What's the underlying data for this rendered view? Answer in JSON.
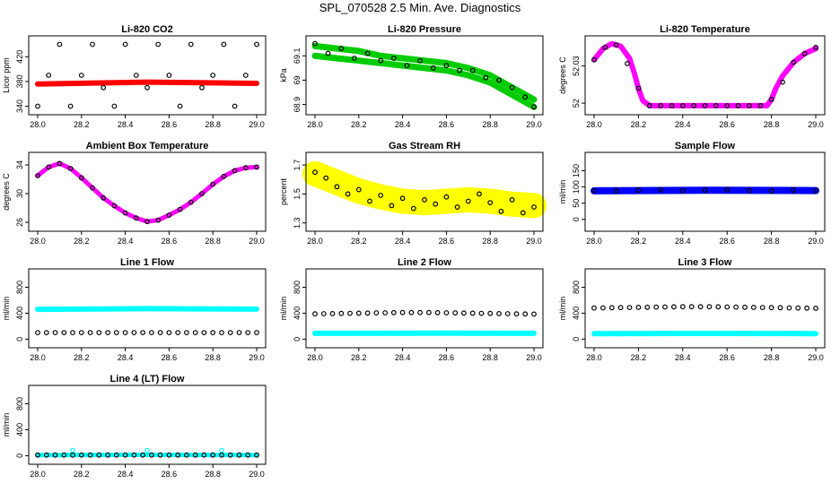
{
  "title": "SPL_070528  2.5 Min. Ave. Diagnostics",
  "colors": {
    "black": "#000000",
    "red": "#ff0000",
    "green": "#00cc00",
    "magenta": "#ff00ff",
    "yellow": "#ffff00",
    "blue": "#0000ff",
    "cyan": "#00ffff"
  },
  "chart_data": [
    {
      "type": "scatter",
      "title": "Li-820 CO2",
      "ylabel": "Licor ppm",
      "xlim": [
        28.0,
        29.0
      ],
      "ylim": [
        335,
        445
      ],
      "xticks": [
        28.0,
        28.2,
        28.4,
        28.6,
        28.8,
        29.0
      ],
      "yticks": [
        340,
        380,
        420
      ],
      "series": [
        {
          "color": "red",
          "shape": "band",
          "x": [
            28.0,
            28.5,
            29.0
          ],
          "y": [
            376,
            379,
            377
          ],
          "width": 6
        },
        {
          "color": "black",
          "shape": "ring",
          "x": [
            28.0,
            28.05,
            28.1,
            28.15,
            28.2,
            28.25,
            28.3,
            28.35,
            28.4,
            28.45,
            28.5,
            28.55,
            28.6,
            28.65,
            28.7,
            28.75,
            28.8,
            28.85,
            28.9,
            28.95,
            29.0
          ],
          "y": [
            340,
            390,
            440,
            340,
            390,
            440,
            370,
            340,
            440,
            390,
            370,
            440,
            390,
            340,
            440,
            370,
            390,
            440,
            340,
            390,
            440
          ]
        }
      ]
    },
    {
      "type": "scatter",
      "title": "Li-820 Pressure",
      "ylabel": "kPa",
      "xlim": [
        28.0,
        29.0
      ],
      "ylim": [
        68.88,
        69.16
      ],
      "xticks": [
        28.0,
        28.2,
        28.4,
        28.6,
        28.8,
        29.0
      ],
      "yticks": [
        68.9,
        69.0,
        69.1
      ],
      "series": [
        {
          "color": "green",
          "shape": "band",
          "x": [
            28.0,
            28.1,
            28.2,
            28.3,
            28.4,
            28.5,
            28.6,
            28.7,
            28.8,
            28.9,
            29.0
          ],
          "y": [
            69.14,
            69.13,
            69.12,
            69.1,
            69.09,
            69.08,
            69.07,
            69.05,
            69.02,
            68.97,
            68.92
          ],
          "width": 7
        },
        {
          "color": "green",
          "shape": "band",
          "x": [
            28.0,
            28.1,
            28.2,
            28.3,
            28.4,
            28.5,
            28.6,
            28.7,
            28.8,
            28.9,
            29.0
          ],
          "y": [
            69.1,
            69.09,
            69.08,
            69.07,
            69.06,
            69.05,
            69.04,
            69.02,
            68.99,
            68.94,
            68.89
          ],
          "width": 7
        },
        {
          "color": "black",
          "shape": "ring",
          "x": [
            28.0,
            28.06,
            28.12,
            28.18,
            28.24,
            28.3,
            28.36,
            28.42,
            28.48,
            28.54,
            28.6,
            28.66,
            28.72,
            28.78,
            28.84,
            28.9,
            28.96,
            29.0
          ],
          "y": [
            69.15,
            69.11,
            69.13,
            69.09,
            69.11,
            69.08,
            69.09,
            69.06,
            69.08,
            69.05,
            69.06,
            69.04,
            69.04,
            69.01,
            69.0,
            68.97,
            68.93,
            68.89
          ]
        }
      ]
    },
    {
      "type": "scatter",
      "title": "Li-820 Temperature",
      "ylabel": "degrees C",
      "xlim": [
        28.0,
        29.0
      ],
      "ylim": [
        51.995,
        52.05
      ],
      "xticks": [
        28.0,
        28.2,
        28.4,
        28.6,
        28.8,
        29.0
      ],
      "yticks": [
        52.0,
        52.03
      ],
      "series": [
        {
          "color": "magenta",
          "shape": "band",
          "x": [
            28.0,
            28.04,
            28.08,
            28.12,
            28.16,
            28.18,
            28.2,
            28.22,
            28.25,
            28.3,
            28.5,
            28.7,
            28.78,
            28.8,
            28.82,
            28.85,
            28.9,
            28.95,
            29.0
          ],
          "y": [
            52.035,
            52.044,
            52.048,
            52.046,
            52.036,
            52.025,
            52.012,
            52.002,
            51.998,
            51.998,
            51.998,
            51.998,
            51.998,
            52.003,
            52.012,
            52.022,
            52.033,
            52.04,
            52.044
          ],
          "width": 6
        },
        {
          "color": "black",
          "shape": "ring",
          "x": [
            28.0,
            28.05,
            28.1,
            28.15,
            28.2,
            28.25,
            28.3,
            28.35,
            28.4,
            28.45,
            28.5,
            28.55,
            28.6,
            28.65,
            28.7,
            28.75,
            28.8,
            28.85,
            28.9,
            28.95,
            29.0
          ],
          "y": [
            52.035,
            52.045,
            52.047,
            52.032,
            52.012,
            51.998,
            51.998,
            51.998,
            51.998,
            51.998,
            51.998,
            51.998,
            51.998,
            51.998,
            51.998,
            51.998,
            52.003,
            52.017,
            52.033,
            52.04,
            52.045
          ]
        }
      ]
    },
    {
      "type": "scatter",
      "title": "Ambient Box Temperature",
      "ylabel": "degrees C",
      "xlim": [
        28.0,
        29.0
      ],
      "ylim": [
        25.5,
        35.0
      ],
      "xticks": [
        28.0,
        28.2,
        28.4,
        28.6,
        28.8,
        29.0
      ],
      "yticks": [
        26,
        30,
        34
      ],
      "series": [
        {
          "color": "magenta",
          "shape": "band",
          "x": [
            28.0,
            28.05,
            28.1,
            28.15,
            28.2,
            28.25,
            28.3,
            28.35,
            28.4,
            28.45,
            28.5,
            28.55,
            28.6,
            28.65,
            28.7,
            28.75,
            28.8,
            28.85,
            28.9,
            28.95,
            29.0
          ],
          "y": [
            32.5,
            33.7,
            34.2,
            33.5,
            32.2,
            30.8,
            29.4,
            28.3,
            27.3,
            26.6,
            26.1,
            26.3,
            27.0,
            27.8,
            28.8,
            30.0,
            31.3,
            32.4,
            33.2,
            33.6,
            33.7
          ],
          "width": 5
        },
        {
          "color": "black",
          "shape": "ring",
          "x": [
            28.0,
            28.05,
            28.1,
            28.15,
            28.2,
            28.25,
            28.3,
            28.35,
            28.4,
            28.45,
            28.5,
            28.55,
            28.6,
            28.65,
            28.7,
            28.75,
            28.8,
            28.85,
            28.9,
            28.95,
            29.0
          ],
          "y": [
            32.5,
            33.7,
            34.2,
            33.5,
            32.2,
            30.8,
            29.4,
            28.3,
            27.3,
            26.6,
            26.1,
            26.3,
            27.0,
            27.8,
            28.8,
            30.0,
            31.3,
            32.4,
            33.2,
            33.6,
            33.7
          ]
        }
      ]
    },
    {
      "type": "scatter",
      "title": "Gas Stream RH",
      "ylabel": "percent",
      "xlim": [
        28.0,
        29.0
      ],
      "ylim": [
        1.28,
        1.75
      ],
      "xticks": [
        28.0,
        28.2,
        28.4,
        28.6,
        28.8,
        29.0
      ],
      "yticks": [
        1.3,
        1.5,
        1.7
      ],
      "series": [
        {
          "color": "yellow",
          "shape": "band",
          "x": [
            28.0,
            28.1,
            28.2,
            28.3,
            28.4,
            28.5,
            28.6,
            28.7,
            28.8,
            28.9,
            29.0
          ],
          "y": [
            1.64,
            1.58,
            1.52,
            1.48,
            1.45,
            1.44,
            1.45,
            1.46,
            1.45,
            1.43,
            1.42
          ],
          "width": 28
        },
        {
          "color": "black",
          "shape": "ring",
          "x": [
            28.0,
            28.05,
            28.1,
            28.15,
            28.2,
            28.25,
            28.3,
            28.35,
            28.4,
            28.45,
            28.5,
            28.55,
            28.6,
            28.65,
            28.7,
            28.75,
            28.8,
            28.85,
            28.9,
            28.95,
            29.0
          ],
          "y": [
            1.65,
            1.61,
            1.55,
            1.5,
            1.53,
            1.45,
            1.49,
            1.42,
            1.47,
            1.4,
            1.46,
            1.43,
            1.48,
            1.41,
            1.45,
            1.5,
            1.44,
            1.38,
            1.46,
            1.37,
            1.41
          ]
        }
      ]
    },
    {
      "type": "scatter",
      "title": "Sample Flow",
      "ylabel": "ml/min",
      "xlim": [
        28.0,
        29.0
      ],
      "ylim": [
        -20,
        190
      ],
      "xticks": [
        28.0,
        28.2,
        28.4,
        28.6,
        28.8,
        29.0
      ],
      "yticks": [
        0,
        50,
        100,
        150
      ],
      "series": [
        {
          "color": "blue",
          "shape": "band",
          "x": [
            28.0,
            28.5,
            29.0
          ],
          "y": [
            88,
            90,
            89
          ],
          "width": 8
        },
        {
          "color": "black",
          "shape": "ring",
          "x": [
            28.0,
            28.1,
            28.2,
            28.3,
            28.4,
            28.5,
            28.6,
            28.7,
            28.8,
            28.9,
            29.0
          ],
          "y": [
            89,
            88,
            90,
            91,
            89,
            90,
            91,
            89,
            88,
            90,
            89
          ]
        }
      ]
    },
    {
      "type": "scatter",
      "title": "Line 1 Flow",
      "ylabel": "ml/min",
      "xlim": [
        28.0,
        29.0
      ],
      "ylim": [
        -50,
        1000
      ],
      "xticks": [
        28.0,
        28.2,
        28.4,
        28.6,
        28.8,
        29.0
      ],
      "yticks": [
        0,
        400,
        800
      ],
      "series": [
        {
          "color": "cyan",
          "shape": "band",
          "x": [
            28.0,
            28.5,
            29.0
          ],
          "y": [
            460,
            470,
            462
          ],
          "width": 6
        },
        {
          "color": "black",
          "shape": "ring",
          "x": [
            28.0,
            28.04,
            28.08,
            28.12,
            28.16,
            28.2,
            28.24,
            28.28,
            28.32,
            28.36,
            28.4,
            28.44,
            28.48,
            28.52,
            28.56,
            28.6,
            28.64,
            28.68,
            28.72,
            28.76,
            28.8,
            28.84,
            28.88,
            28.92,
            28.96,
            29.0
          ],
          "y": [
            100,
            100,
            100,
            100,
            100,
            100,
            100,
            100,
            100,
            100,
            100,
            100,
            100,
            100,
            100,
            100,
            100,
            100,
            100,
            100,
            100,
            100,
            100,
            100,
            100,
            100
          ]
        }
      ]
    },
    {
      "type": "scatter",
      "title": "Line 2 Flow",
      "ylabel": "ml/min",
      "xlim": [
        28.0,
        29.0
      ],
      "ylim": [
        -50,
        1000
      ],
      "xticks": [
        28.0,
        28.2,
        28.4,
        28.6,
        28.8,
        29.0
      ],
      "yticks": [
        0,
        400,
        800
      ],
      "series": [
        {
          "color": "cyan",
          "shape": "band",
          "x": [
            28.0,
            28.5,
            29.0
          ],
          "y": [
            90,
            92,
            90
          ],
          "width": 6
        },
        {
          "color": "black",
          "shape": "ring",
          "x": [
            28.0,
            28.04,
            28.08,
            28.12,
            28.16,
            28.2,
            28.24,
            28.28,
            28.32,
            28.36,
            28.4,
            28.44,
            28.48,
            28.52,
            28.56,
            28.6,
            28.64,
            28.68,
            28.72,
            28.76,
            28.8,
            28.84,
            28.88,
            28.92,
            28.96,
            29.0
          ],
          "y": [
            390,
            392,
            394,
            396,
            398,
            400,
            402,
            404,
            406,
            408,
            410,
            410,
            410,
            410,
            408,
            406,
            404,
            402,
            400,
            398,
            396,
            394,
            392,
            390,
            388,
            386
          ]
        }
      ]
    },
    {
      "type": "scatter",
      "title": "Line 3 Flow",
      "ylabel": "ml/min",
      "xlim": [
        28.0,
        29.0
      ],
      "ylim": [
        -50,
        1000
      ],
      "xticks": [
        28.0,
        28.2,
        28.4,
        28.6,
        28.8,
        29.0
      ],
      "yticks": [
        0,
        400,
        800
      ],
      "series": [
        {
          "color": "cyan",
          "shape": "band",
          "x": [
            28.0,
            28.5,
            29.0
          ],
          "y": [
            85,
            88,
            85
          ],
          "width": 6
        },
        {
          "color": "black",
          "shape": "ring",
          "x": [
            28.0,
            28.04,
            28.08,
            28.12,
            28.16,
            28.2,
            28.24,
            28.28,
            28.32,
            28.36,
            28.4,
            28.44,
            28.48,
            28.52,
            28.56,
            28.6,
            28.64,
            28.68,
            28.72,
            28.76,
            28.8,
            28.84,
            28.88,
            28.92,
            28.96,
            29.0
          ],
          "y": [
            480,
            482,
            484,
            486,
            488,
            490,
            492,
            494,
            496,
            498,
            500,
            500,
            500,
            500,
            498,
            496,
            494,
            492,
            490,
            488,
            486,
            484,
            482,
            480,
            478,
            476
          ]
        }
      ]
    },
    {
      "type": "scatter",
      "title": "Line 4 (LT) Flow",
      "ylabel": "ml/min",
      "xlim": [
        28.0,
        29.0
      ],
      "ylim": [
        -50,
        1000
      ],
      "xticks": [
        28.0,
        28.2,
        28.4,
        28.6,
        28.8,
        29.0
      ],
      "yticks": [
        0,
        400,
        800
      ],
      "series": [
        {
          "color": "cyan",
          "shape": "band",
          "x": [
            28.0,
            28.5,
            29.0
          ],
          "y": [
            10,
            12,
            10
          ],
          "width": 5
        },
        {
          "color": "cyan",
          "shape": "ring",
          "x": [
            28.16,
            28.5,
            28.84
          ],
          "y": [
            80,
            80,
            80
          ]
        },
        {
          "color": "black",
          "shape": "ring",
          "x": [
            28.0,
            28.04,
            28.08,
            28.12,
            28.16,
            28.2,
            28.24,
            28.28,
            28.32,
            28.36,
            28.4,
            28.44,
            28.48,
            28.52,
            28.56,
            28.6,
            28.64,
            28.68,
            28.72,
            28.76,
            28.8,
            28.84,
            28.88,
            28.92,
            28.96,
            29.0
          ],
          "y": [
            10,
            10,
            10,
            10,
            10,
            10,
            10,
            10,
            10,
            10,
            10,
            10,
            10,
            10,
            10,
            10,
            10,
            10,
            10,
            10,
            10,
            10,
            10,
            10,
            10,
            10
          ]
        }
      ]
    }
  ]
}
